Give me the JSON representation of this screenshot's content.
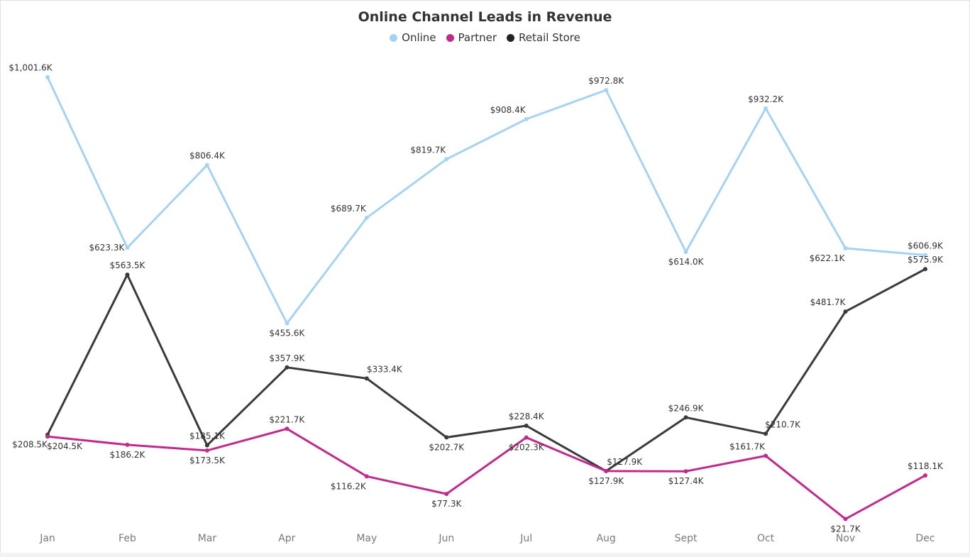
{
  "chart_data": {
    "type": "line",
    "title": "Online Channel Leads in Revenue",
    "xlabel": "",
    "ylabel": "",
    "categories": [
      "Jan",
      "Feb",
      "Mar",
      "Apr",
      "May",
      "Jun",
      "Jul",
      "Aug",
      "Sept",
      "Oct",
      "Nov",
      "Dec"
    ],
    "ylim": [
      0,
      1050
    ],
    "grid": false,
    "legend": "top-center",
    "series": [
      {
        "name": "Online",
        "color": "#a6d3f2",
        "values": [
          1001.6,
          623.3,
          806.4,
          455.6,
          689.7,
          819.7,
          908.4,
          972.8,
          614.0,
          932.2,
          622.1,
          606.9
        ],
        "labels": [
          "$1,001.6K",
          "$623.3K",
          "$806.4K",
          "$455.6K",
          "$689.7K",
          "$819.7K",
          "$908.4K",
          "$972.8K",
          "$614.0K",
          "$932.2K",
          "$622.1K",
          "$606.9K"
        ]
      },
      {
        "name": "Partner",
        "color": "#bf2a8c",
        "values": [
          204.5,
          186.2,
          173.5,
          221.7,
          116.2,
          77.3,
          202.3,
          127.9,
          127.4,
          161.7,
          21.7,
          118.1
        ],
        "labels": [
          "$204.5K",
          "$186.2K",
          "$173.5K",
          "$221.7K",
          "$116.2K",
          "$77.3K",
          "$202.3K",
          "$127.9K",
          "$127.4K",
          "$161.7K",
          "$21.7K",
          "$118.1K"
        ]
      },
      {
        "name": "Retail Store",
        "color": "#3a3a3a",
        "values": [
          208.5,
          563.5,
          185.1,
          357.9,
          333.4,
          202.7,
          228.4,
          127.9,
          246.9,
          210.7,
          481.7,
          575.9
        ],
        "labels": [
          "$208.5K",
          "$563.5K",
          "$185.1K",
          "$357.9K",
          "$333.4K",
          "$202.7K",
          "$228.4K",
          "$127.9K",
          "$246.9K",
          "$210.7K",
          "$481.7K",
          "$575.9K"
        ]
      }
    ]
  }
}
